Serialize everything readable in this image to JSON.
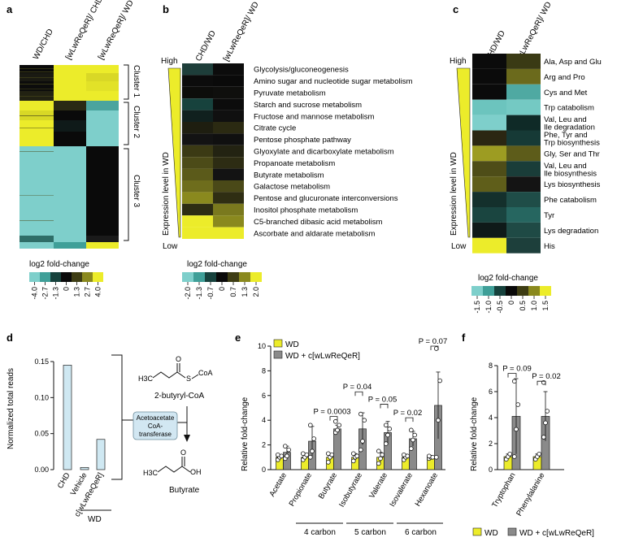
{
  "colors": {
    "cyan": "#7ecfcb",
    "yellow": "#ecec2a",
    "black": "#0a0a0a",
    "gray_bar": "#8a8a8a",
    "light_blue_bar": "#cfe8f2",
    "enzyme_box": "#d2e7f2"
  },
  "panel_a": {
    "label": "a",
    "columns": [
      "WD/CHD",
      "[wLwReQeR]/ CHD",
      "[wLwReQeR]/ WD"
    ],
    "clusters": [
      "Cluster 1",
      "Cluster 2",
      "Cluster 3"
    ],
    "legend_title": "log2 fold-change",
    "legend_ticks": [
      "-4.0",
      "-2.7",
      "-1.3",
      "0",
      "1.3",
      "2.7",
      "4.0"
    ]
  },
  "panel_b": {
    "label": "b",
    "columns": [
      "CHD/WD",
      "[wLwReQeR]/ WD"
    ],
    "axis_label": "Expression level in WD",
    "high_label": "High",
    "low_label": "Low",
    "rows": [
      "Glycolysis/gluconeogenesis",
      "Amino sugar and nucleotide sugar metabolism",
      "Pyruvate metabolism",
      "Starch and sucrose metabolism",
      "Fructose and mannose metabolism",
      "Citrate cycle",
      "Pentose phosphate pathway",
      "Glyoxylate and dicarboxylate metabolism",
      "Propanoate metabolism",
      "Butyrate metabolism",
      "Galactose metabolism",
      "Pentose and glucuronate interconversions",
      "Inositol phosphate metabolism",
      "C5-branched dibasic acid metabolism",
      "Ascorbate and aldarate metabolism"
    ],
    "cells": [
      [
        "#1e3e3a",
        "#0c0c0c"
      ],
      [
        "#0c0c0c",
        "#0a0a0a"
      ],
      [
        "#0d0d0b",
        "#0f0f0d"
      ],
      [
        "#17423d",
        "#0c0c0c"
      ],
      [
        "#10201e",
        "#101010"
      ],
      [
        "#1e1e10",
        "#2b2a12"
      ],
      [
        "#131313",
        "#101010"
      ],
      [
        "#3b3a14",
        "#232312"
      ],
      [
        "#4c4b18",
        "#2d2c13"
      ],
      [
        "#5b5a1a",
        "#131313"
      ],
      [
        "#6e6d1c",
        "#4a4918"
      ],
      [
        "#8a891e",
        "#2f2e13"
      ],
      [
        "#2e2d13",
        "#7a791e"
      ],
      [
        "#ecec2a",
        "#8a891e"
      ],
      [
        "#ecec2a",
        "#ecec2a"
      ]
    ],
    "legend_title": "log2 fold-change",
    "legend_ticks": [
      "-2.0",
      "-1.3",
      "-0.7",
      "0",
      "0.7",
      "1.3",
      "2.0"
    ]
  },
  "panel_c": {
    "label": "c",
    "columns": [
      "CHD/WD",
      "[wLwReQeR]/ WD"
    ],
    "axis_label": "Expression level in WD",
    "high_label": "High",
    "low_label": "Low",
    "rows": [
      "Ala, Asp and Glu",
      "Arg and Pro",
      "Cys and Met",
      "Trp catabolism",
      "Val, Leu and Ile degradation",
      "Phe, Tyr and Trp biosynthesis",
      "Gly, Ser and Thr",
      "Val, Leu and Ile biosynthesis",
      "Lys biosynthesis",
      "Phe catabolism",
      "Tyr",
      "Lys degradation",
      "His"
    ],
    "cells": [
      [
        "#0b0b0b",
        "#3a3a14"
      ],
      [
        "#0b0b0b",
        "#6b6a1c"
      ],
      [
        "#0b0b0b",
        "#4fa9a2"
      ],
      [
        "#6cc4be",
        "#74c9c3"
      ],
      [
        "#7ecfcb",
        "#0f2a27"
      ],
      [
        "#2b2712",
        "#163a36"
      ],
      [
        "#9d9c22",
        "#5d5c1a"
      ],
      [
        "#4e4d18",
        "#1a3d39"
      ],
      [
        "#5f5e1a",
        "#141414"
      ],
      [
        "#14302c",
        "#1f4d48"
      ],
      [
        "#1a4540",
        "#266660"
      ],
      [
        "#0f1a19",
        "#1f4a45"
      ],
      [
        "#ecec2a",
        "#1d3f3b"
      ]
    ],
    "legend_title": "log2 fold-change",
    "legend_ticks": [
      "-1.5",
      "-1.0",
      "-0.5",
      "0",
      "0.5",
      "1.0",
      "1.5"
    ]
  },
  "panel_d": {
    "label": "d",
    "ylabel": "Normalized total reads",
    "yticks": [
      "0.00",
      "0.05",
      "0.10",
      "0.15"
    ],
    "categories": [
      "CHD",
      "Vehicle",
      "c[wLwReQeR]"
    ],
    "wd_group_label": "WD",
    "enzyme_text": [
      "Acetoacetate",
      "CoA-",
      "transferase"
    ],
    "substrate_label": "2-butyryl-CoA",
    "product_label": "Butyrate",
    "h3c": "H3C",
    "s_label": "S",
    "coa_label": "CoA",
    "oh_label": "OH",
    "o_label": "O"
  },
  "panel_e": {
    "label": "e",
    "ylabel": "Relative fold-change",
    "legend": [
      "WD",
      "WD + c[wLwReQeR]"
    ],
    "groups": [
      {
        "label": "4 carbon"
      },
      {
        "label": "5 carbon"
      },
      {
        "label": "6 carbon"
      }
    ],
    "p_values": [
      "P = 0.0003",
      "P = 0.04",
      "P = 0.05",
      "P = 0.02",
      "P = 0.07"
    ]
  },
  "panel_f": {
    "label": "f",
    "ylabel": "Relative fold-change",
    "p_values": [
      "P = 0.09",
      "P = 0.02"
    ],
    "legend": [
      "WD",
      "WD + c[wLwReQeR]"
    ]
  },
  "chart_data": [
    {
      "type": "bar",
      "panel": "d",
      "categories": [
        "CHD",
        "Vehicle",
        "c[wLwReQeR]"
      ],
      "values": [
        0.145,
        0.003,
        0.042
      ],
      "ylabel": "Normalized total reads",
      "ylim": [
        0,
        0.15
      ]
    },
    {
      "type": "bar",
      "panel": "e",
      "categories": [
        "Acetate",
        "Propionate",
        "Butyrate",
        "Isobutyrate",
        "Valerate",
        "Isovalerate",
        "Hexanoate"
      ],
      "ylabel": "Relative fold-change",
      "ylim": [
        0,
        10
      ],
      "yticks": [
        0,
        2,
        4,
        6,
        8,
        10
      ],
      "series": [
        {
          "name": "WD",
          "values": [
            1.0,
            1.0,
            1.0,
            1.0,
            1.0,
            1.0,
            1.0
          ],
          "errors": [
            0.2,
            0.25,
            0.3,
            0.3,
            0.4,
            0.25,
            0.15
          ],
          "points": [
            [
              0.8,
              1.0,
              1.1,
              1.2
            ],
            [
              0.8,
              1.0,
              1.2,
              1.3
            ],
            [
              0.6,
              1.0,
              1.2,
              1.3
            ],
            [
              0.7,
              1.0,
              1.1,
              1.3
            ],
            [
              0.5,
              0.9,
              1.2,
              1.5
            ],
            [
              0.8,
              1.0,
              1.1,
              1.2
            ],
            [
              0.9,
              1.0,
              1.0,
              1.1
            ]
          ]
        },
        {
          "name": "WD + c[wLwReQeR]",
          "values": [
            1.4,
            2.3,
            3.3,
            3.3,
            3.0,
            2.5,
            5.2
          ],
          "errors": [
            0.5,
            1.2,
            0.3,
            1.3,
            0.9,
            0.6,
            2.7
          ],
          "points": [
            [
              0.9,
              1.1,
              1.6,
              1.9
            ],
            [
              1.0,
              1.5,
              2.5,
              3.6
            ],
            [
              3.0,
              3.2,
              3.6,
              3.9
            ],
            [
              1.6,
              2.3,
              4.0,
              4.5
            ],
            [
              2.1,
              2.8,
              3.3,
              3.6
            ],
            [
              1.7,
              2.4,
              2.8,
              3.2
            ],
            [
              1.0,
              4.0,
              7.2,
              9.8
            ]
          ]
        }
      ]
    },
    {
      "type": "bar",
      "panel": "f",
      "categories": [
        "Tryptophan",
        "Phenylalanine"
      ],
      "ylabel": "Relative fold-change",
      "ylim": [
        0,
        8
      ],
      "yticks": [
        0,
        2,
        4,
        6,
        8
      ],
      "series": [
        {
          "name": "WD",
          "values": [
            1.0,
            1.0
          ],
          "errors": [
            0.2,
            0.2
          ],
          "points": [
            [
              0.8,
              1.0,
              1.2
            ],
            [
              0.8,
              1.0,
              1.2
            ]
          ]
        },
        {
          "name": "WD + c[wLwReQeR]",
          "values": [
            4.1,
            4.1
          ],
          "errors": [
            2.9,
            1.9
          ],
          "points": [
            [
              1.0,
              3.1,
              5.0,
              6.8
            ],
            [
              2.5,
              3.6,
              4.5,
              6.7
            ]
          ]
        }
      ]
    }
  ]
}
